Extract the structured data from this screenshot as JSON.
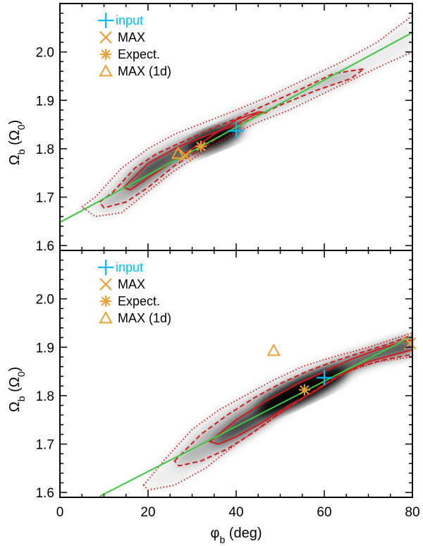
{
  "chart_data": [
    {
      "type": "line",
      "panel": "top",
      "xlabel": "φb (deg)",
      "ylabel": "Ωb (Ω0)",
      "xlim": [
        0,
        80
      ],
      "ylim": [
        1.59,
        2.1
      ],
      "x_ticks": [
        0,
        20,
        40,
        60,
        80
      ],
      "y_ticks": [
        1.6,
        1.7,
        1.8,
        1.9,
        2.0
      ],
      "y_tick_labels": [
        "1.6",
        "1.7",
        "1.8",
        "1.9",
        "2.0"
      ],
      "legend": [
        {
          "label": "input",
          "marker": "plus",
          "color": "#00bfff"
        },
        {
          "label": "MAX",
          "marker": "x",
          "color": "#f0a030"
        },
        {
          "label": "Expect.",
          "marker": "asterisk",
          "color": "#f0a030"
        },
        {
          "label": "MAX (1d)",
          "marker": "triangle",
          "color": "#f0a030"
        }
      ],
      "points": {
        "input": [
          40,
          1.837
        ],
        "max": [
          28.5,
          1.786
        ],
        "expect": [
          32,
          1.805
        ],
        "max_1d": [
          26.8,
          1.79
        ]
      },
      "fit_line": {
        "x": [
          0,
          80
        ],
        "y": [
          1.648,
          2.04
        ]
      },
      "contour_1sigma": {
        "x": [
          14.5,
          20,
          27,
          34,
          40,
          44,
          47,
          45,
          40,
          35,
          30,
          25,
          20,
          16,
          14.5
        ],
        "y": [
          1.72,
          1.77,
          1.805,
          1.83,
          1.85,
          1.87,
          1.875,
          1.876,
          1.86,
          1.83,
          1.8,
          1.77,
          1.74,
          1.715,
          1.72
        ]
      },
      "contour_2sigma": {
        "x": [
          9,
          12,
          17,
          22,
          28,
          34,
          40,
          46,
          54,
          62,
          69,
          66,
          58,
          50,
          44,
          38,
          32,
          26,
          20,
          15,
          10,
          9
        ],
        "y": [
          1.69,
          1.71,
          1.76,
          1.79,
          1.815,
          1.84,
          1.862,
          1.888,
          1.92,
          1.955,
          1.965,
          1.945,
          1.92,
          1.89,
          1.865,
          1.835,
          1.8,
          1.765,
          1.72,
          1.69,
          1.678,
          1.69
        ]
      },
      "contour_3sigma": {
        "x": [
          5,
          8,
          14,
          20,
          26,
          33,
          40,
          48,
          56,
          64,
          72,
          80,
          80,
          75,
          68,
          60,
          52,
          45,
          38,
          32,
          26,
          20,
          14,
          8,
          5
        ],
        "y": [
          1.68,
          1.7,
          1.76,
          1.8,
          1.83,
          1.855,
          1.88,
          1.91,
          1.945,
          1.98,
          2.02,
          2.075,
          2.0,
          1.98,
          1.95,
          1.915,
          1.88,
          1.855,
          1.825,
          1.79,
          1.755,
          1.712,
          1.668,
          1.66,
          1.68
        ]
      },
      "density_peak": [
        35,
        1.82
      ]
    },
    {
      "type": "line",
      "panel": "bottom",
      "xlabel": "φb (deg)",
      "ylabel": "Ωb (Ω0)",
      "xlim": [
        0,
        80
      ],
      "ylim": [
        1.59,
        2.1
      ],
      "x_ticks": [
        0,
        20,
        40,
        60,
        80
      ],
      "x_tick_labels": [
        "0",
        "20",
        "40",
        "60",
        "80"
      ],
      "y_ticks": [
        1.6,
        1.7,
        1.8,
        1.9,
        2.0
      ],
      "y_tick_labels": [
        "1.6",
        "1.7",
        "1.8",
        "1.9",
        "2.0"
      ],
      "legend": [
        {
          "label": "input",
          "marker": "plus",
          "color": "#00bfff"
        },
        {
          "label": "MAX",
          "marker": "x",
          "color": "#f0a030"
        },
        {
          "label": "Expect.",
          "marker": "asterisk",
          "color": "#f0a030"
        },
        {
          "label": "MAX (1d)",
          "marker": "triangle",
          "color": "#f0a030"
        }
      ],
      "points": {
        "input": [
          60,
          1.837
        ],
        "max": [
          79.5,
          1.908
        ],
        "expect": [
          55.5,
          1.812
        ],
        "max_1d": [
          48.5,
          1.893
        ]
      },
      "fit_line": {
        "x": [
          9,
          80
        ],
        "y": [
          1.592,
          1.923
        ]
      },
      "contour_1sigma": {
        "x": [
          34,
          40,
          47,
          54,
          60,
          66,
          72,
          78,
          80,
          80,
          76,
          70,
          64,
          58,
          52,
          46,
          40,
          36,
          34
        ],
        "y": [
          1.705,
          1.75,
          1.79,
          1.825,
          1.85,
          1.875,
          1.895,
          1.912,
          1.915,
          1.895,
          1.885,
          1.87,
          1.845,
          1.81,
          1.78,
          1.745,
          1.715,
          1.7,
          1.705
        ]
      },
      "contour_2sigma": {
        "x": [
          26,
          32,
          38,
          44,
          50,
          56,
          62,
          68,
          74,
          80,
          80,
          74,
          68,
          62,
          56,
          50,
          44,
          38,
          32,
          27,
          26
        ],
        "y": [
          1.665,
          1.72,
          1.76,
          1.795,
          1.825,
          1.85,
          1.87,
          1.888,
          1.905,
          1.925,
          1.885,
          1.875,
          1.86,
          1.835,
          1.8,
          1.765,
          1.725,
          1.69,
          1.665,
          1.655,
          1.665
        ]
      },
      "contour_3sigma": {
        "x": [
          19,
          24,
          30,
          36,
          42,
          48,
          55,
          62,
          70,
          80,
          80,
          72,
          64,
          56,
          48,
          40,
          33,
          26,
          20,
          19
        ],
        "y": [
          1.615,
          1.67,
          1.73,
          1.77,
          1.8,
          1.83,
          1.86,
          1.88,
          1.9,
          1.93,
          1.88,
          1.87,
          1.845,
          1.8,
          1.75,
          1.7,
          1.65,
          1.615,
          1.605,
          1.615
        ]
      },
      "density_peak": [
        55,
        1.81
      ]
    }
  ]
}
